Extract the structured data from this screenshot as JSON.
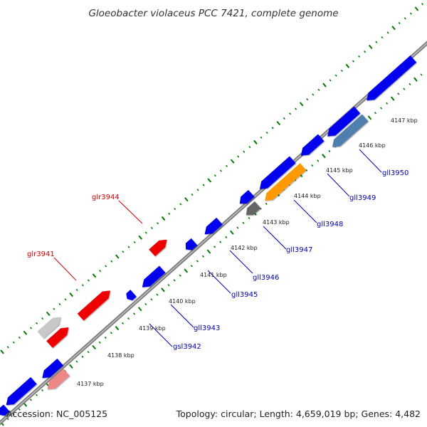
{
  "title": "Gloeobacter violaceus PCC 7421, complete genome",
  "footer": {
    "accession": "Accession: NC_005125",
    "summary": "Topology: circular; Length: 4,659,019 bp; Genes: 4,482"
  },
  "scale": {
    "kbp_labels": [
      "4137 kbp",
      "4138 kbp",
      "4139 kbp",
      "4140 kbp",
      "4141 kbp",
      "4142 kbp",
      "4143 kbp",
      "4144 kbp",
      "4145 kbp",
      "4146 kbp",
      "4147 kbp"
    ]
  },
  "genes": {
    "forward_labels": [
      "glr3941",
      "glr3944"
    ],
    "reverse_labels": [
      "gsl3942",
      "gll3943",
      "gll3945",
      "gll3946",
      "gll3947",
      "gll3948",
      "gll3949",
      "gll3950"
    ]
  },
  "colors": {
    "forward_label": "#cc0000",
    "reverse_label": "#0000aa",
    "tick": "#007a00",
    "backbone": "#888888",
    "blue_gene": "#0000ee",
    "red_gene": "#ee0000",
    "orange_gene": "#ff9900",
    "steel_gene": "#4f7fae",
    "gray_gene": "#666666",
    "light_gray_gene": "#c8c8c8",
    "pink_gene": "#ee8888"
  }
}
